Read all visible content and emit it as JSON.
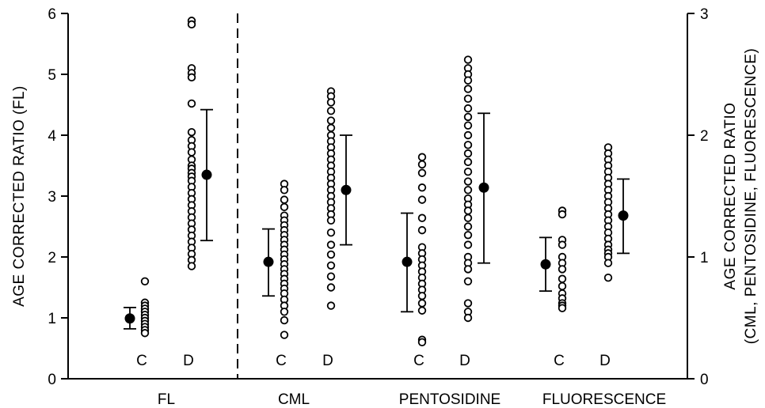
{
  "chart_data": {
    "type": "scatter",
    "title": "",
    "left_axis": {
      "label": "AGE CORRECTED RATIO (FL)",
      "ylim": [
        0,
        6
      ],
      "ticks": [
        "0",
        "1",
        "2",
        "3",
        "4",
        "5",
        "6"
      ]
    },
    "right_axis": {
      "label_line1": "AGE CORRECTED RATIO",
      "label_line2": "(CML, PENTOSIDINE, FLUORESCENCE)",
      "ylim": [
        0,
        3
      ],
      "ticks": [
        "0",
        "1",
        "2",
        "3"
      ]
    },
    "groups": [
      {
        "label": "FL",
        "axis": "left",
        "series": [
          {
            "label": "C",
            "values": [
              1.6,
              1.25,
              1.2,
              1.15,
              1.1,
              1.05,
              1.0,
              0.95,
              0.9,
              0.85,
              0.8,
              0.75
            ],
            "mean": 0.99,
            "sd_low": 0.82,
            "sd_high": 1.17
          },
          {
            "label": "D",
            "values": [
              5.88,
              5.82,
              5.1,
              5.02,
              4.95,
              4.52,
              4.05,
              3.92,
              3.82,
              3.72,
              3.6,
              3.5,
              3.45,
              3.38,
              3.32,
              3.25,
              3.15,
              3.05,
              2.95,
              2.85,
              2.75,
              2.65,
              2.55,
              2.45,
              2.35,
              2.25,
              2.15,
              2.05,
              1.95,
              1.85
            ],
            "mean": 3.35,
            "sd_low": 2.27,
            "sd_high": 4.42
          }
        ]
      },
      {
        "label": "CML",
        "axis": "right",
        "series": [
          {
            "label": "C",
            "values": [
              1.6,
              1.55,
              1.47,
              1.41,
              1.34,
              1.3,
              1.26,
              1.22,
              1.18,
              1.14,
              1.1,
              1.06,
              1.02,
              0.98,
              0.94,
              0.9,
              0.86,
              0.82,
              0.78,
              0.74,
              0.7,
              0.65,
              0.6,
              0.55,
              0.48,
              0.36
            ],
            "mean": 0.96,
            "sd_low": 0.68,
            "sd_high": 1.23
          },
          {
            "label": "D",
            "values": [
              2.36,
              2.32,
              2.27,
              2.2,
              2.12,
              2.06,
              2.0,
              1.95,
              1.9,
              1.85,
              1.8,
              1.75,
              1.7,
              1.65,
              1.6,
              1.55,
              1.5,
              1.45,
              1.4,
              1.35,
              1.3,
              1.2,
              1.1,
              1.02,
              0.93,
              0.84,
              0.75,
              0.6
            ],
            "mean": 1.55,
            "sd_low": 1.1,
            "sd_high": 2.0
          }
        ]
      },
      {
        "label": "PENTOSIDINE",
        "axis": "right",
        "series": [
          {
            "label": "C",
            "values": [
              1.82,
              1.76,
              1.69,
              1.57,
              1.47,
              1.32,
              1.22,
              1.08,
              1.03,
              0.98,
              0.93,
              0.88,
              0.83,
              0.78,
              0.73,
              0.68,
              0.62,
              0.56,
              0.32,
              0.3
            ],
            "mean": 0.96,
            "sd_low": 0.55,
            "sd_high": 1.36
          },
          {
            "label": "D",
            "values": [
              2.62,
              2.55,
              2.5,
              2.45,
              2.38,
              2.3,
              2.22,
              2.15,
              2.08,
              2.0,
              1.92,
              1.85,
              1.78,
              1.7,
              1.62,
              1.55,
              1.48,
              1.43,
              1.38,
              1.32,
              1.25,
              1.18,
              1.1,
              1.0,
              0.95,
              0.9,
              0.8,
              0.62,
              0.55,
              0.5
            ],
            "mean": 1.57,
            "sd_low": 0.95,
            "sd_high": 2.18
          }
        ]
      },
      {
        "label": "FLUORESCENCE",
        "axis": "right",
        "series": [
          {
            "label": "C",
            "values": [
              1.38,
              1.35,
              1.14,
              1.1,
              1.0,
              0.95,
              0.9,
              0.82,
              0.76,
              0.7,
              0.66,
              0.62,
              0.6,
              0.58
            ],
            "mean": 0.94,
            "sd_low": 0.72,
            "sd_high": 1.16
          },
          {
            "label": "D",
            "values": [
              1.9,
              1.85,
              1.8,
              1.75,
              1.7,
              1.65,
              1.6,
              1.55,
              1.5,
              1.45,
              1.4,
              1.35,
              1.3,
              1.25,
              1.2,
              1.15,
              1.1,
              1.06,
              1.03,
              1.0,
              0.95,
              0.83
            ],
            "mean": 1.34,
            "sd_low": 1.03,
            "sd_high": 1.64
          }
        ]
      }
    ]
  }
}
